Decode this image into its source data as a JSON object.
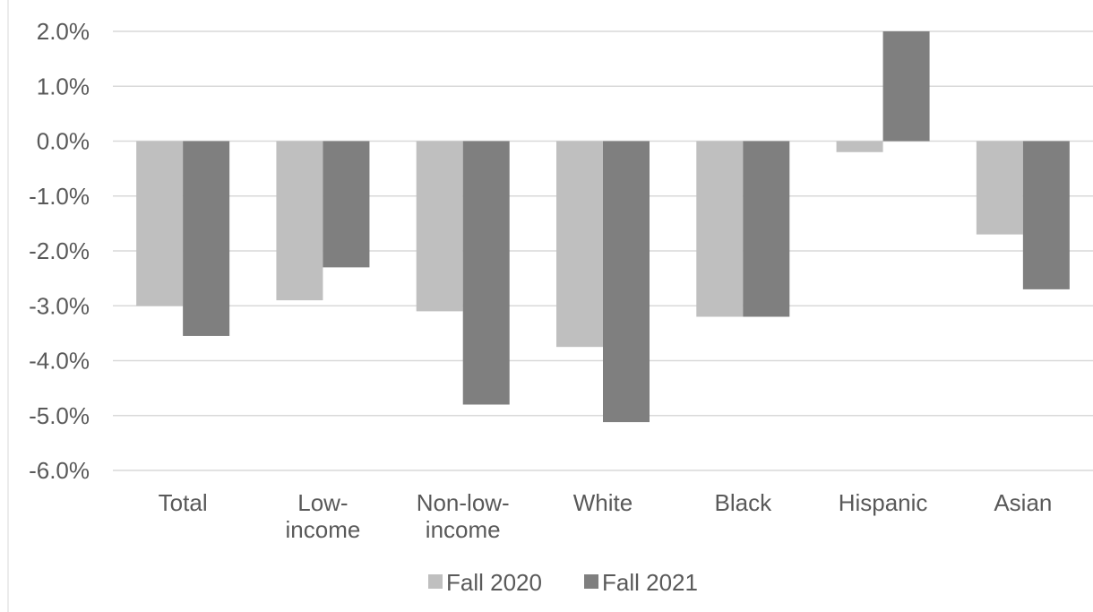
{
  "chart_data": {
    "type": "bar",
    "title": "",
    "xlabel": "",
    "ylabel": "",
    "categories": [
      [
        "Total"
      ],
      [
        "Low-",
        "income"
      ],
      [
        "Non-low-",
        "income"
      ],
      [
        "White"
      ],
      [
        "Black"
      ],
      [
        "Hispanic"
      ],
      [
        "Asian"
      ]
    ],
    "series": [
      {
        "name": "Fall 2020",
        "color": "#bfbfbf",
        "values": [
          -3.0,
          -2.9,
          -3.1,
          -3.75,
          -3.2,
          -0.2,
          -1.7
        ]
      },
      {
        "name": "Fall 2021",
        "color": "#7f7f7f",
        "values": [
          -3.55,
          -2.3,
          -4.8,
          -5.12,
          -3.2,
          2.0,
          -2.7
        ]
      }
    ],
    "ylim": [
      -6.0,
      2.0
    ],
    "yticks": [
      "2.0%",
      "1.0%",
      "0.0%",
      "-1.0%",
      "-2.0%",
      "-3.0%",
      "-4.0%",
      "-5.0%",
      "-6.0%"
    ],
    "ytick_values": [
      2.0,
      1.0,
      0.0,
      -1.0,
      -2.0,
      -3.0,
      -4.0,
      -5.0,
      -6.0
    ],
    "grid": true,
    "legend_position": "bottom-center"
  }
}
